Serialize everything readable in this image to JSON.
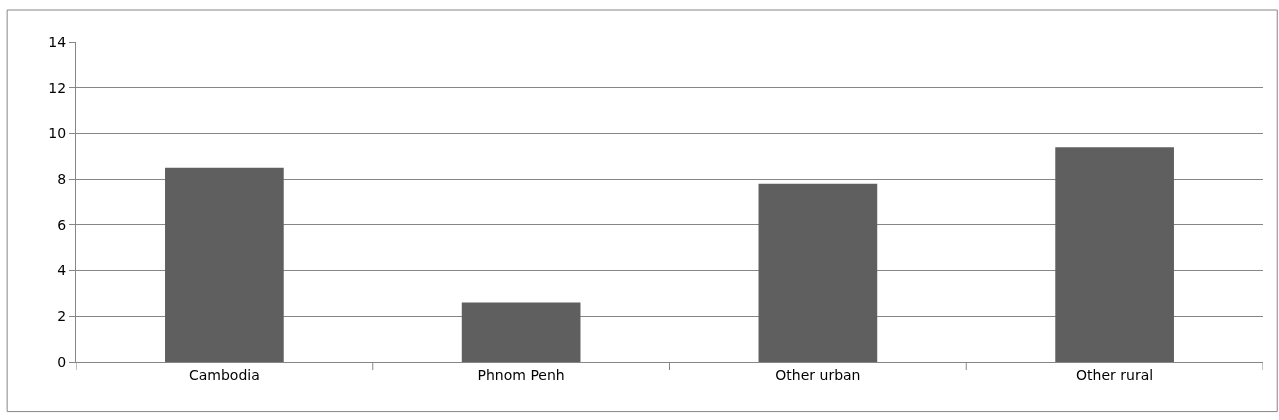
{
  "chart_data": {
    "type": "bar",
    "categories": [
      "Cambodia",
      "Phnom Penh",
      "Other urban",
      "Other rural"
    ],
    "values": [
      8.5,
      2.6,
      7.8,
      9.4
    ],
    "color": "#5f5f5f",
    "ylim": [
      0,
      14
    ],
    "yticks": [
      0,
      2,
      4,
      6,
      8,
      10,
      12,
      14
    ],
    "grid": "y",
    "legend": false
  }
}
